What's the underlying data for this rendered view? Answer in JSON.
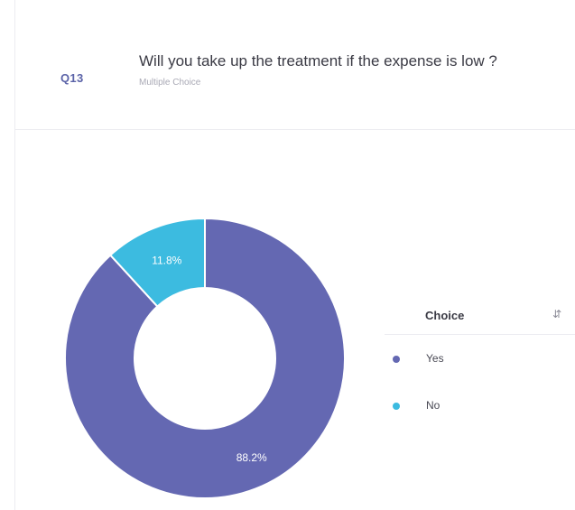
{
  "question": {
    "number": "Q13",
    "title": "Will you take up the treatment if the expense is low ?",
    "type": "Multiple Choice"
  },
  "legend": {
    "header": "Choice",
    "sort_icon": "sort-icon",
    "items": [
      {
        "label": "Yes",
        "color": "#6468b2"
      },
      {
        "label": "No",
        "color": "#3cbbe0"
      }
    ]
  },
  "chart_data": {
    "type": "pie",
    "variant": "donut",
    "title": "",
    "categories": [
      "Yes",
      "No"
    ],
    "values": [
      88.2,
      11.8
    ],
    "labels": [
      "88.2%",
      "11.8%"
    ],
    "colors": [
      "#6468b2",
      "#3cbbe0"
    ],
    "legend_position": "right"
  }
}
